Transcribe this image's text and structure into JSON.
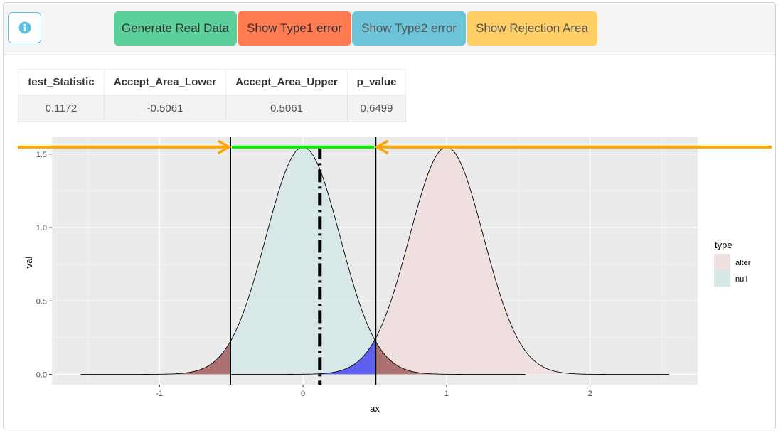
{
  "toolbar": {
    "info_icon": "info-circle-icon",
    "buttons": [
      {
        "label": "Generate Real Data",
        "color": "#5bd09a"
      },
      {
        "label": "Show Type1 error",
        "color": "#ff7b52"
      },
      {
        "label": "Show Type2 error",
        "color": "#6cc4d8"
      },
      {
        "label": "Show Rejection Area",
        "color": "#ffcf66"
      }
    ]
  },
  "table": {
    "headers": [
      "test_Statistic",
      "Accept_Area_Lower",
      "Accept_Area_Upper",
      "p_value"
    ],
    "rows": [
      [
        "0.1172",
        "-0.5061",
        "0.5061",
        "0.6499"
      ]
    ]
  },
  "chart_data": {
    "type": "area",
    "xlabel": "ax",
    "ylabel": "val",
    "xlim": [
      -1.75,
      2.75
    ],
    "ylim": [
      -0.07,
      1.62
    ],
    "x_ticks": [
      -1,
      0,
      1,
      2
    ],
    "y_ticks": [
      "0.0",
      "0.5",
      "1.0",
      "1.5"
    ],
    "grid": true,
    "legend_title": "type",
    "legend_placement": "right",
    "series": [
      {
        "name": "alter",
        "mean": 1,
        "sd": 0.2577,
        "x_range": [
          -0.5,
          2.55
        ],
        "fill": "#efdfdf"
      },
      {
        "name": "null",
        "mean": 0,
        "sd": 0.2577,
        "x_range": [
          -1.55,
          1.55
        ],
        "fill": "#d5e8e8"
      }
    ],
    "accept_lower": -0.5061,
    "accept_upper": 0.5061,
    "test_statistic": 0.1172,
    "arrow_level": 1.548,
    "colors": {
      "type1_fill": "#a86464",
      "type2_fill": "#5050f0",
      "accept_line": "#00ee00",
      "reject_arrow": "#ffa500",
      "panel_bg": "#ebebeb"
    }
  }
}
